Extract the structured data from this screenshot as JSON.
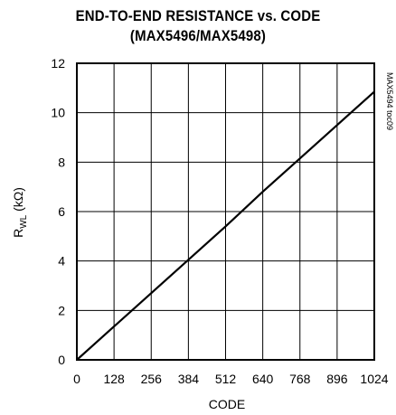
{
  "chart_data": {
    "type": "line",
    "title": "END-TO-END RESISTANCE vs. CODE",
    "subtitle": "(MAX5496/MAX5498)",
    "xlabel": "CODE",
    "ylabel_main": "R",
    "ylabel_sub": "WL",
    "ylabel_unit": " (kΩ)",
    "xlim": [
      0,
      1024
    ],
    "ylim": [
      0,
      12
    ],
    "x_ticks": [
      0,
      128,
      256,
      384,
      512,
      640,
      768,
      896,
      1024
    ],
    "y_ticks": [
      0,
      2,
      4,
      6,
      8,
      10,
      12
    ],
    "grid": true,
    "annotation": "MAX5494 toc09",
    "series": [
      {
        "x": [
          0,
          128,
          256,
          384,
          512,
          640,
          768,
          896,
          1024
        ],
        "y": [
          0,
          1.35,
          2.7,
          4.05,
          5.4,
          6.8,
          8.15,
          9.5,
          10.85
        ]
      }
    ]
  }
}
